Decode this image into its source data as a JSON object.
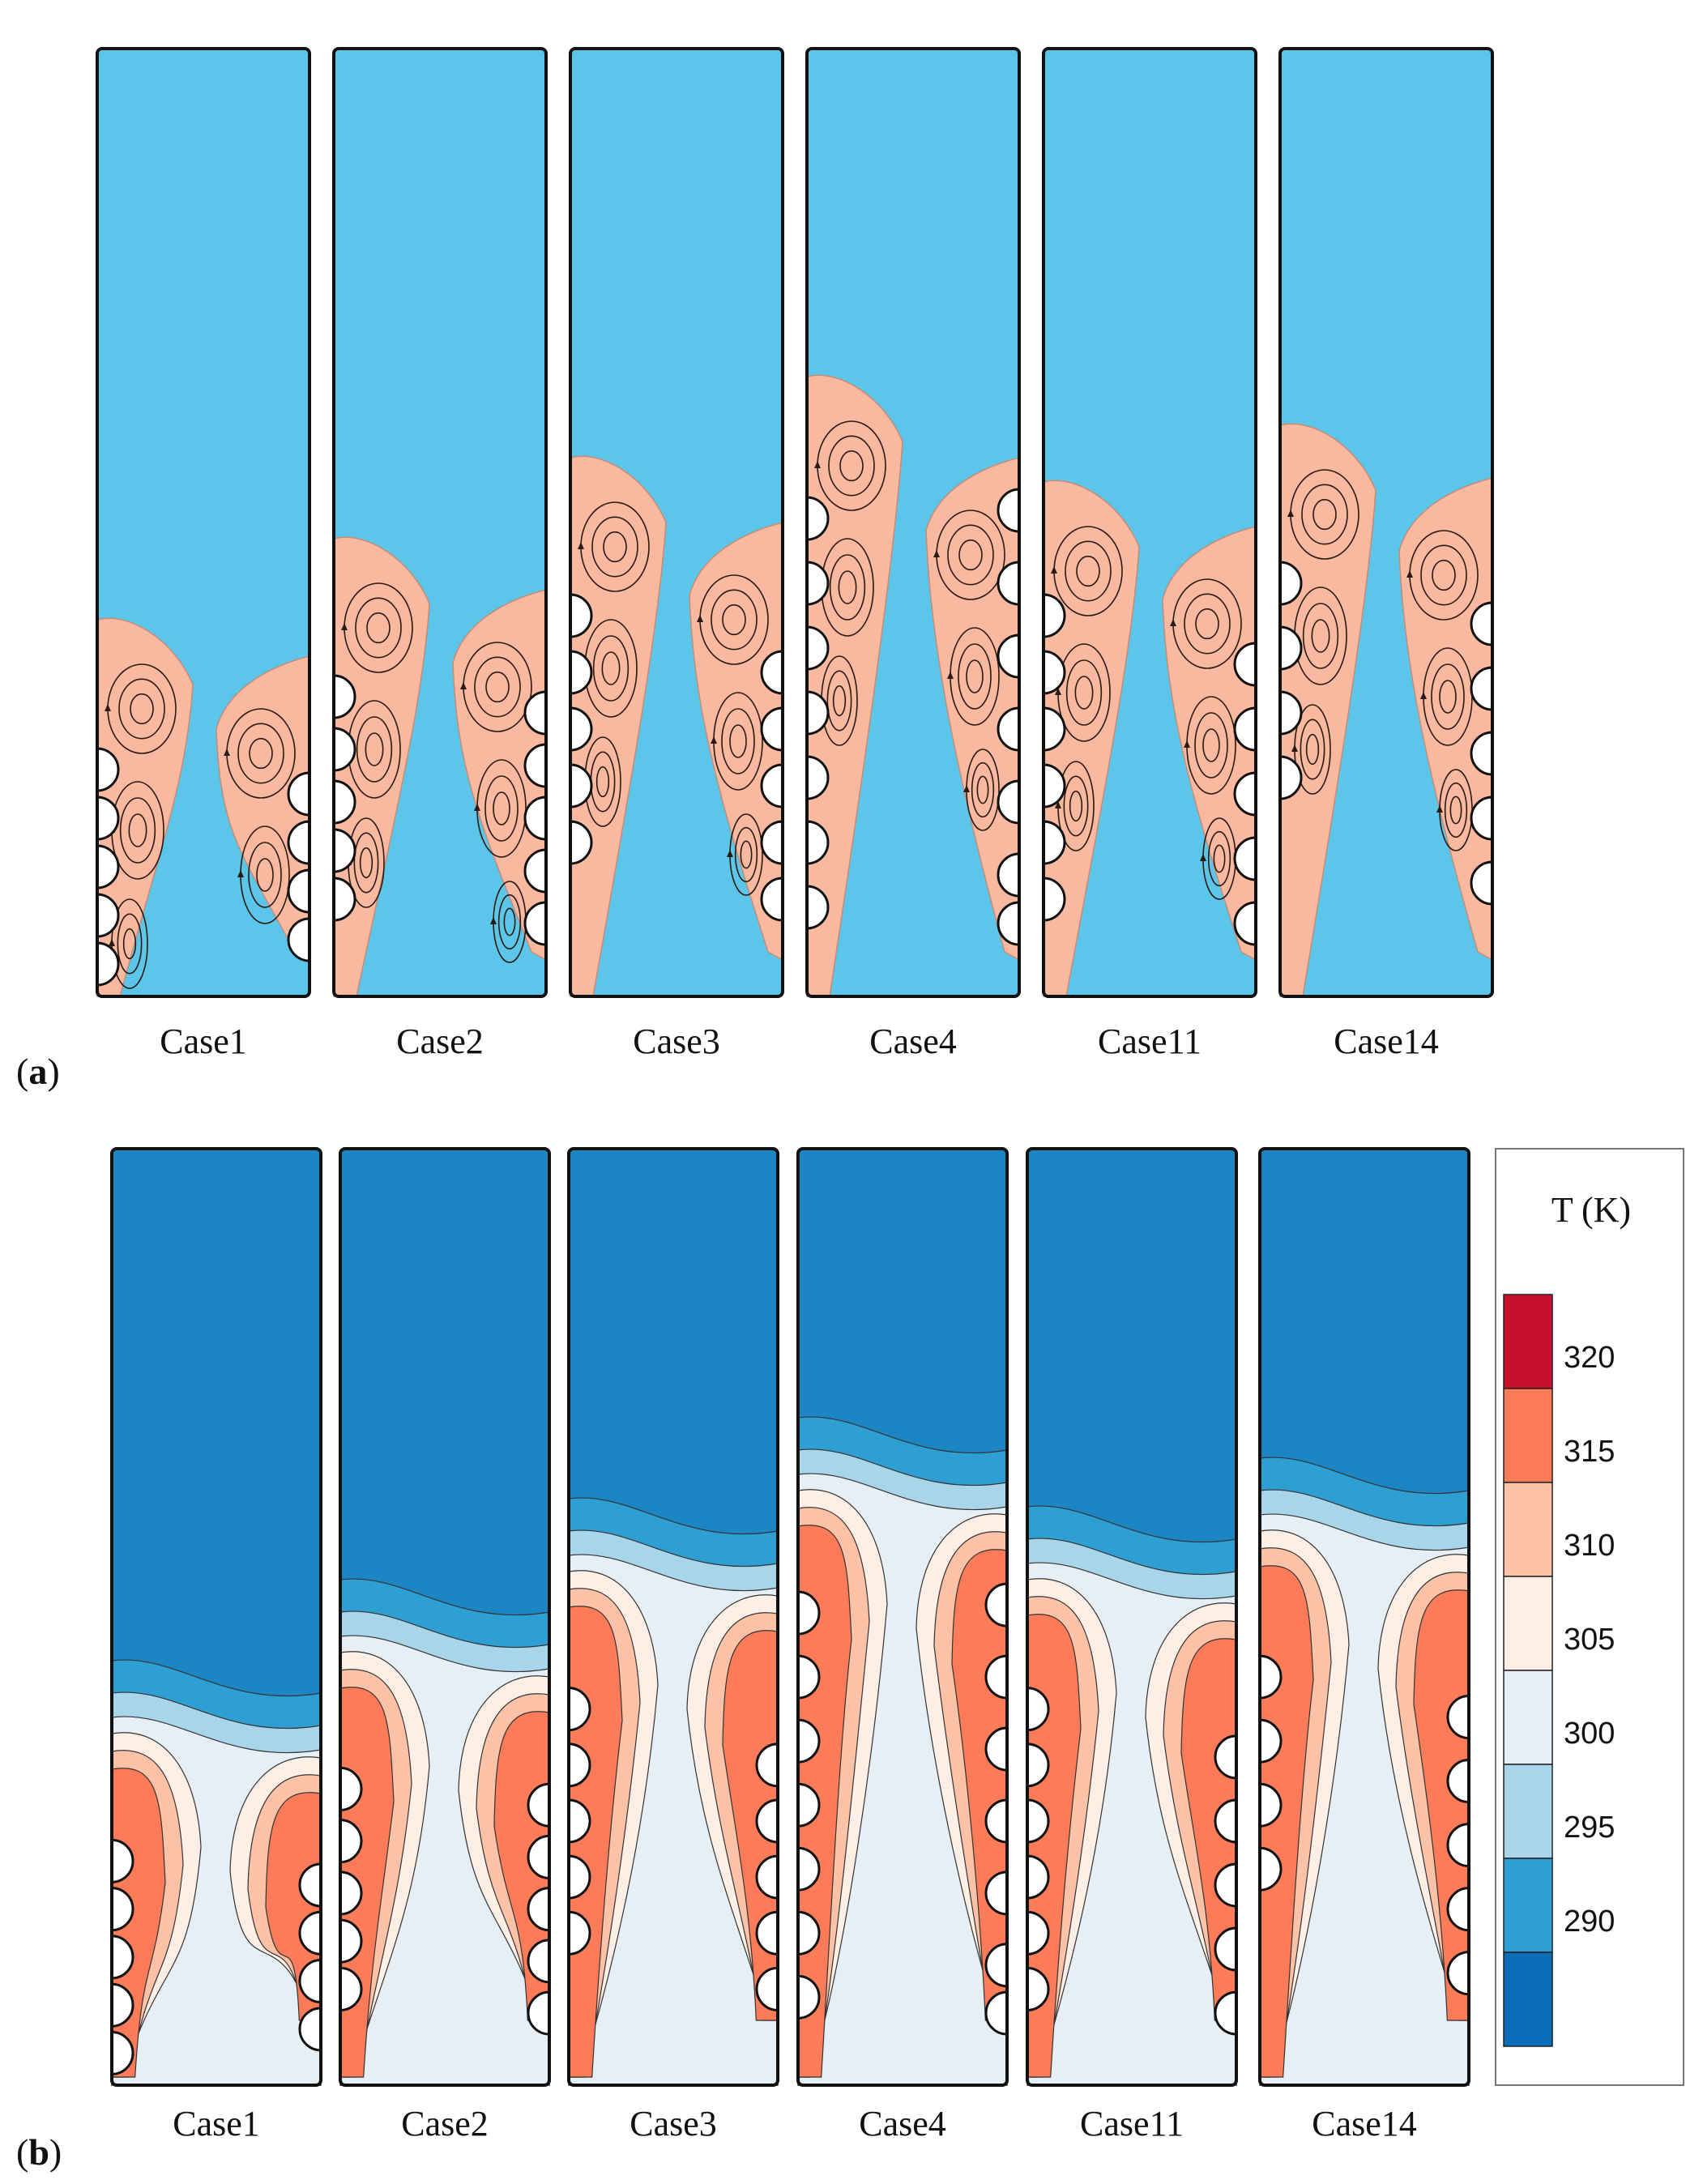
{
  "panel_a": {
    "label_open": "(",
    "label_letter": "a",
    "label_close": ")",
    "cases": [
      "Case1",
      "Case2",
      "Case3",
      "Case4",
      "Case11",
      "Case14"
    ],
    "colors": {
      "liquid": "#5cc6ea",
      "melt": "#f9b8a0",
      "streamline": "#2a1a12"
    }
  },
  "panel_b": {
    "label_open": "(",
    "label_letter": "b",
    "label_close": ")",
    "cases": [
      "Case1",
      "Case2",
      "Case3",
      "Case4",
      "Case11",
      "Case14"
    ],
    "colorbar": {
      "title": "T (K)",
      "ticks": [
        "320",
        "315",
        "310",
        "305",
        "300",
        "295",
        "290"
      ],
      "bands": [
        "#c8102e",
        "#fc7b58",
        "#fcc2a8",
        "#fdeee6",
        "#e7eff6",
        "#a8d5ea",
        "#2e9fd3",
        "#0a6eb8"
      ]
    },
    "colors": {
      "cold": "#1b86c3",
      "band295": "#2e9fd3",
      "band300": "#a8d5ea",
      "band305": "#e7eff6",
      "band310": "#fdeee6",
      "band315": "#fcc2a8",
      "band320": "#fc7b58"
    }
  }
}
